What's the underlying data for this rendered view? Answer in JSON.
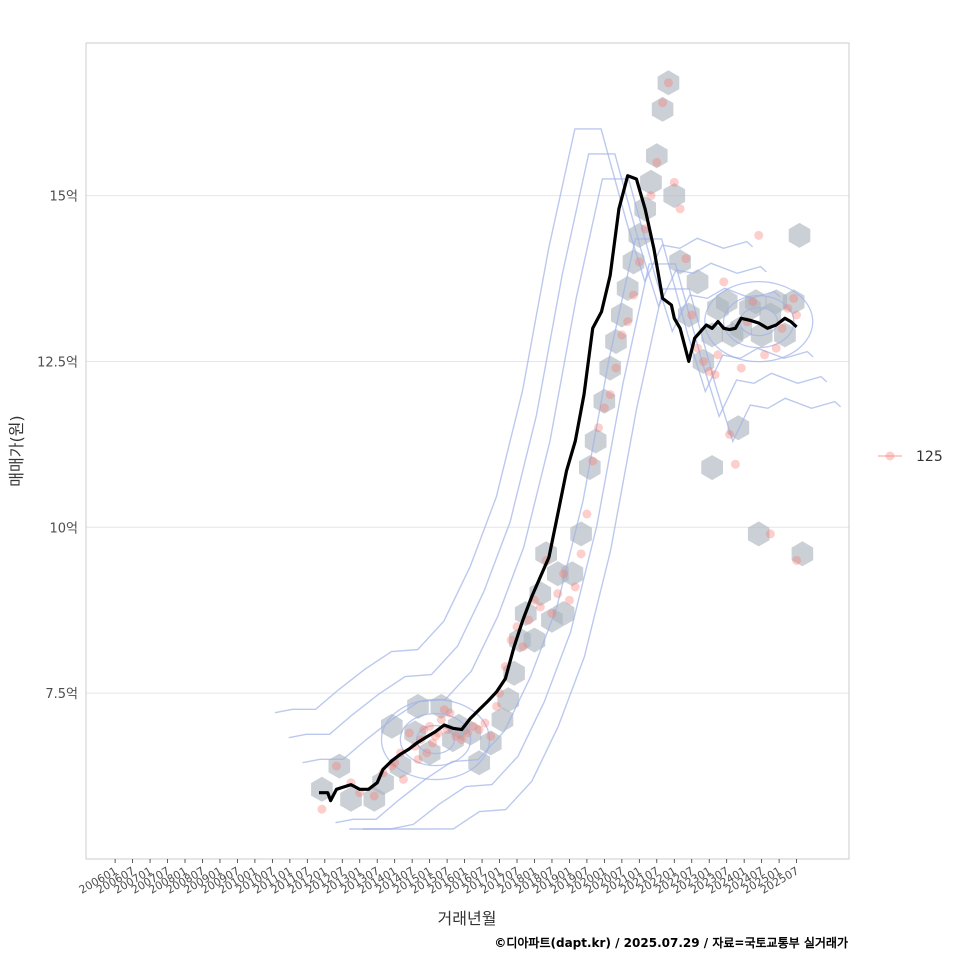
{
  "chart_data": {
    "type": "scatter",
    "xlabel": "거래년월",
    "ylabel": "매매가(원)",
    "caption": "©디아파트(dapt.kr) / 2025.07.29 / 자료=국토교통부 실거래가",
    "legend": {
      "position": "right",
      "entries": [
        {
          "name": "125"
        }
      ]
    },
    "y_ticks": [
      {
        "value": 7.5,
        "label": "7.5억"
      },
      {
        "value": 10,
        "label": "10억"
      },
      {
        "value": 12.5,
        "label": "12.5억"
      },
      {
        "value": 15,
        "label": "15억"
      }
    ],
    "ylim": [
      5.0,
      17.3
    ],
    "x_tick_labels": [
      "200601",
      "200607",
      "200701",
      "200707",
      "200801",
      "200807",
      "200901",
      "200907",
      "201001",
      "201007",
      "201101",
      "201107",
      "201201",
      "201207",
      "201301",
      "201307",
      "201401",
      "201407",
      "201501",
      "201507",
      "201601",
      "201607",
      "201701",
      "201707",
      "201801",
      "201807",
      "201901",
      "201907",
      "202001",
      "202007",
      "202101",
      "202107",
      "202201",
      "202207",
      "202301",
      "202307",
      "202401",
      "202407",
      "202501",
      "202507"
    ],
    "xlim": [
      "2005-03",
      "2027-01"
    ],
    "grid": true,
    "colors": {
      "points": "#f8766d",
      "line": "#000000",
      "hex": "#a9b3bd",
      "contour": "#9fb2e8"
    },
    "trend_line": {
      "x": [
        "2011-11",
        "2012-02",
        "2012-03",
        "2012-05",
        "2012-07",
        "2012-10",
        "2013-01",
        "2013-04",
        "2013-07",
        "2013-09",
        "2013-12",
        "2014-03",
        "2014-06",
        "2014-09",
        "2014-12",
        "2015-03",
        "2015-06",
        "2015-09",
        "2015-12",
        "2016-03",
        "2016-06",
        "2016-09",
        "2016-12",
        "2017-03",
        "2017-06",
        "2017-09",
        "2017-12",
        "2018-03",
        "2018-06",
        "2018-09",
        "2018-12",
        "2019-03",
        "2019-06",
        "2019-09",
        "2019-12",
        "2020-03",
        "2020-06",
        "2020-09",
        "2020-12",
        "2021-03",
        "2021-06",
        "2021-09",
        "2021-12",
        "2022-01",
        "2022-03",
        "2022-06",
        "2022-08",
        "2022-10",
        "2022-12",
        "2023-02",
        "2023-04",
        "2023-06",
        "2023-08",
        "2023-10",
        "2023-12",
        "2024-03",
        "2024-06",
        "2024-09",
        "2024-12",
        "2025-03",
        "2025-05",
        "2025-07"
      ],
      "y": [
        6.0,
        6.0,
        5.88,
        6.05,
        6.08,
        6.12,
        6.05,
        6.05,
        6.15,
        6.35,
        6.48,
        6.58,
        6.66,
        6.76,
        6.84,
        6.92,
        7.02,
        6.97,
        6.95,
        7.12,
        7.25,
        7.38,
        7.52,
        7.72,
        8.2,
        8.6,
        8.95,
        9.25,
        9.55,
        10.2,
        10.85,
        11.3,
        12.0,
        13.0,
        13.25,
        13.8,
        14.8,
        15.3,
        15.25,
        14.8,
        14.2,
        13.45,
        13.35,
        13.15,
        13.0,
        12.5,
        12.85,
        12.95,
        13.05,
        13.0,
        13.1,
        13.0,
        12.98,
        13.0,
        13.15,
        13.12,
        13.08,
        13.0,
        13.05,
        13.15,
        13.1,
        13.02
      ]
    },
    "points": {
      "x": [
        "2011-12",
        "2012-05",
        "2012-10",
        "2013-01",
        "2013-06",
        "2013-09",
        "2013-12",
        "2014-01",
        "2014-03",
        "2014-04",
        "2014-06",
        "2014-08",
        "2014-09",
        "2014-10",
        "2014-11",
        "2014-12",
        "2015-01",
        "2015-02",
        "2015-03",
        "2015-04",
        "2015-05",
        "2015-06",
        "2015-07",
        "2015-08",
        "2015-10",
        "2015-12",
        "2016-02",
        "2016-04",
        "2016-06",
        "2016-08",
        "2016-10",
        "2016-12",
        "2017-01",
        "2017-03",
        "2017-05",
        "2017-07",
        "2017-09",
        "2017-11",
        "2018-01",
        "2018-03",
        "2018-05",
        "2018-07",
        "2018-09",
        "2018-11",
        "2019-01",
        "2019-03",
        "2019-05",
        "2019-07",
        "2019-09",
        "2019-11",
        "2020-01",
        "2020-03",
        "2020-05",
        "2020-07",
        "2020-09",
        "2020-11",
        "2021-01",
        "2021-03",
        "2021-05",
        "2021-07",
        "2021-09",
        "2021-11",
        "2022-01",
        "2022-03",
        "2022-05",
        "2022-07",
        "2022-09",
        "2022-11",
        "2023-01",
        "2023-03",
        "2023-04",
        "2023-06",
        "2023-08",
        "2023-10",
        "2023-12",
        "2024-02",
        "2024-04",
        "2024-06",
        "2024-08",
        "2024-10",
        "2024-12",
        "2025-02",
        "2025-04",
        "2025-06",
        "2025-07",
        "2025-07"
      ],
      "y": [
        5.75,
        6.4,
        6.15,
        6.0,
        5.95,
        6.3,
        6.4,
        6.45,
        6.6,
        6.2,
        6.9,
        6.7,
        6.5,
        6.8,
        6.95,
        6.6,
        7.0,
        6.75,
        6.85,
        6.9,
        7.1,
        7.25,
        6.95,
        7.2,
        6.85,
        6.8,
        6.9,
        7.0,
        6.95,
        7.05,
        6.85,
        7.3,
        7.5,
        7.9,
        8.3,
        8.5,
        8.2,
        8.6,
        8.9,
        8.8,
        9.5,
        8.7,
        9.0,
        9.3,
        8.9,
        9.1,
        9.6,
        10.2,
        11.0,
        11.5,
        11.8,
        12.0,
        12.4,
        12.9,
        13.1,
        13.5,
        14.0,
        14.5,
        15.0,
        15.5,
        16.4,
        16.7,
        15.2,
        14.8,
        14.05,
        13.2,
        12.7,
        12.5,
        12.35,
        12.3,
        12.6,
        13.7,
        11.4,
        10.95,
        12.4,
        13.1,
        13.4,
        14.4,
        12.6,
        9.9,
        12.7,
        13.0,
        13.3,
        13.45,
        13.2,
        9.5
      ]
    },
    "hex_bins": {
      "x": [
        "2011-12",
        "2012-06",
        "2012-10",
        "2013-06",
        "2013-09",
        "2013-12",
        "2014-03",
        "2014-08",
        "2014-09",
        "2015-01",
        "2015-05",
        "2015-09",
        "2015-11",
        "2016-03",
        "2016-06",
        "2016-10",
        "2017-02",
        "2017-04",
        "2017-06",
        "2017-08",
        "2017-10",
        "2018-01",
        "2018-03",
        "2018-05",
        "2018-07",
        "2018-09",
        "2018-11",
        "2019-02",
        "2019-05",
        "2019-08",
        "2019-10",
        "2020-01",
        "2020-03",
        "2020-05",
        "2020-07",
        "2020-09",
        "2020-11",
        "2021-01",
        "2021-03",
        "2021-05",
        "2021-07",
        "2021-09",
        "2021-11",
        "2022-01",
        "2022-03",
        "2022-06",
        "2022-09",
        "2022-11",
        "2023-02",
        "2023-04",
        "2023-07",
        "2023-09",
        "2023-12",
        "2024-03",
        "2024-05",
        "2024-07",
        "2024-10",
        "2024-12",
        "2025-03",
        "2025-06",
        "2025-09",
        "2025-08",
        "2024-06",
        "2023-11",
        "2023-02"
      ],
      "y": [
        6.05,
        6.4,
        5.9,
        5.9,
        6.15,
        7.0,
        6.4,
        6.9,
        7.3,
        6.6,
        7.3,
        6.8,
        7.0,
        6.9,
        6.45,
        6.75,
        7.1,
        7.4,
        7.8,
        8.3,
        8.7,
        8.3,
        9.0,
        9.6,
        8.6,
        9.3,
        8.7,
        9.3,
        9.9,
        10.9,
        11.3,
        11.9,
        12.4,
        12.8,
        13.2,
        13.6,
        14.0,
        14.4,
        14.8,
        15.2,
        15.6,
        16.3,
        16.7,
        15.0,
        14.0,
        13.2,
        13.7,
        12.5,
        12.9,
        13.3,
        13.4,
        12.9,
        13.0,
        13.3,
        13.4,
        12.9,
        13.2,
        13.4,
        12.9,
        13.4,
        9.6,
        14.4,
        9.9,
        11.5,
        10.9
      ]
    }
  }
}
